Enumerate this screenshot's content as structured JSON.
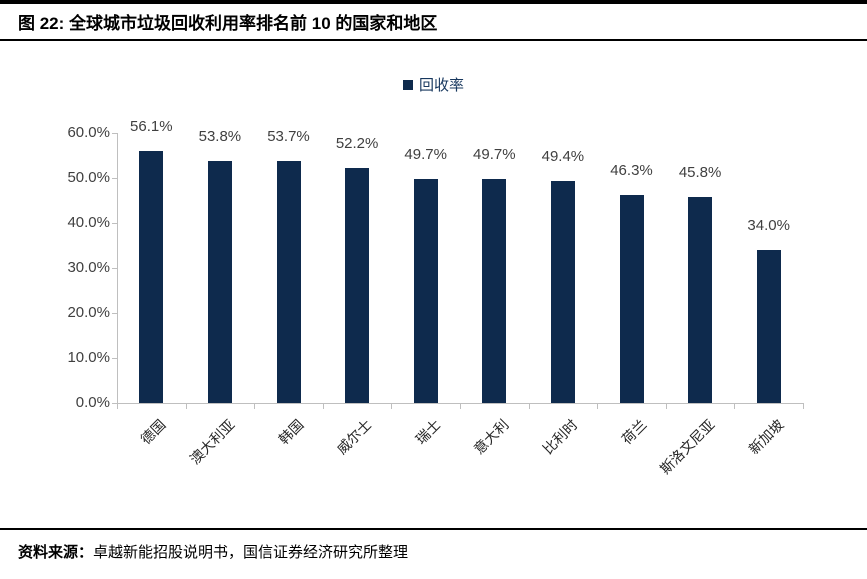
{
  "figure": {
    "title": "图 22: 全球城市垃圾回收利用率排名前 10 的国家和地区",
    "source_label": "资料来源：",
    "source_text": "卓越新能招股说明书，国信证券经济研究所整理"
  },
  "chart_data": {
    "type": "bar",
    "title": "全球城市垃圾回收利用率排名前 10 的国家和地区",
    "legend": [
      "回收率"
    ],
    "legend_position": "top-center",
    "categories": [
      "德国",
      "澳大利亚",
      "韩国",
      "威尔士",
      "瑞士",
      "意大利",
      "比利时",
      "荷兰",
      "斯洛文尼亚",
      "新加坡"
    ],
    "values": [
      56.1,
      53.8,
      53.7,
      52.2,
      49.7,
      49.7,
      49.4,
      46.3,
      45.8,
      34.0
    ],
    "value_labels": [
      "56.1%",
      "53.8%",
      "53.7%",
      "52.2%",
      "49.7%",
      "49.7%",
      "49.4%",
      "46.3%",
      "45.8%",
      "34.0%"
    ],
    "xlabel": "",
    "ylabel": "",
    "ylim": [
      0,
      60
    ],
    "ytick_step": 10,
    "ytick_labels": [
      "0.0%",
      "10.0%",
      "20.0%",
      "30.0%",
      "40.0%",
      "50.0%",
      "60.0%"
    ],
    "grid": false
  },
  "colors": {
    "bar": "#0E2A4D",
    "legend_text": "#17375E",
    "axis_line": "#BFBFBF",
    "axis_label": "#3F3F3F",
    "value_label": "#404040",
    "rule": "#000000"
  }
}
